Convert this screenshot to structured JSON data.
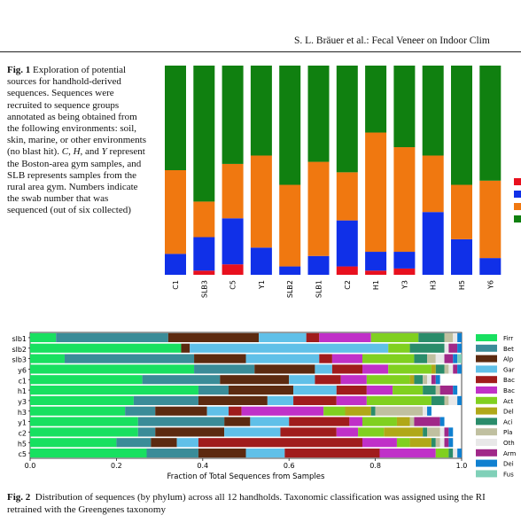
{
  "header": {
    "text": "S. L. Bräuer et al.: Fecal Veneer on Indoor Clim"
  },
  "figure1": {
    "label": "Fig. 1",
    "caption": "Exploration of potential sources for handhold-derived sequences. Sequences were recruited to sequence groups annotated as being obtained from the following environments: soil, skin, marine, or other environments (no blast hit). ",
    "c": "C",
    "sep1": ", ",
    "h": "H",
    "sep2": ", and ",
    "y": "Y",
    "caption_end": " represent the Boston-area gym samples, and SLB represents samples from the rural area gym. Numbers indicate the swab number that was sequenced (out of six collected)"
  },
  "figure2": {
    "label": "Fig. 2",
    "caption_line1": "Distribution of sequences (by phylum) across all 12 handholds. Taxonomic classification was assigned using the RI",
    "caption_line2": "retrained with the Greengenes taxonomy"
  },
  "colors": {
    "red": "#e8101e",
    "blue": "#1030e8",
    "orange": "#f07810",
    "green": "#108010",
    "Firmicutes": "#18e060",
    "Bacteroidetes": "#3a8c98",
    "Alphaproteobacteria": "#5c2a10",
    "Gammaproteobacteria": "#60c0e8",
    "Betaproteobacteria": "#a01c1c",
    "Bacteria_other": "#c030c8",
    "Actinobacteria": "#80d020",
    "Deltaproteobacteria": "#b0a818",
    "Acidobacteria": "#2a8c6a",
    "Planctomycetes": "#c0c0a0",
    "Other": "#e8e8e8",
    "Armatimonadetes": "#a02888",
    "Deinococcus": "#1080d0",
    "Fusobacteria": "#80d0b8"
  },
  "chart_data": [
    {
      "type": "bar",
      "stacked": true,
      "categories": [
        "C1",
        "SLB3",
        "C5",
        "Y1",
        "SLB2",
        "SLB1",
        "C2",
        "H1",
        "Y3",
        "H3",
        "H5",
        "Y6"
      ],
      "series": [
        {
          "color_key": "red",
          "values": [
            0.0,
            0.02,
            0.05,
            0.0,
            0.0,
            0.0,
            0.04,
            0.02,
            0.03,
            0.0,
            0.0,
            0.0
          ]
        },
        {
          "color_key": "blue",
          "values": [
            0.1,
            0.16,
            0.22,
            0.13,
            0.04,
            0.09,
            0.22,
            0.09,
            0.08,
            0.3,
            0.17,
            0.08
          ]
        },
        {
          "color_key": "orange",
          "values": [
            0.4,
            0.17,
            0.26,
            0.44,
            0.39,
            0.45,
            0.23,
            0.57,
            0.5,
            0.27,
            0.26,
            0.37
          ]
        },
        {
          "color_key": "green",
          "values": [
            0.5,
            0.65,
            0.47,
            0.43,
            0.57,
            0.46,
            0.51,
            0.32,
            0.39,
            0.43,
            0.57,
            0.55
          ]
        }
      ],
      "legend_position": "right",
      "ylim": [
        0,
        1
      ]
    },
    {
      "type": "bar",
      "orientation": "horizontal",
      "stacked": true,
      "categories": [
        "slb1",
        "slb2",
        "slb3",
        "y6",
        "c1",
        "h1",
        "y3",
        "h3",
        "y1",
        "c2",
        "h5",
        "c5"
      ],
      "xlabel": "Fraction of Total Sequences from Samples",
      "xlim": [
        0,
        1.0
      ],
      "xticks": [
        "0.0",
        "0.2",
        "0.4",
        "0.6",
        "0.8",
        "1.0"
      ],
      "legend_position": "right",
      "legend": [
        "Firr",
        "Bet",
        "Alp",
        "Gar",
        "Bac",
        "Bac",
        "Act",
        "Del",
        "Aci",
        "Pla",
        "Oth",
        "Arm",
        "Dei",
        "Fus"
      ],
      "series_keys": [
        "Firmicutes",
        "Bacteroidetes",
        "Alphaproteobacteria",
        "Gammaproteobacteria",
        "Betaproteobacteria",
        "Bacteria_other",
        "Actinobacteria",
        "Deltaproteobacteria",
        "Acidobacteria",
        "Planctomycetes",
        "Other",
        "Armatimonadetes",
        "Deinococcus",
        "Fusobacteria"
      ],
      "rows": [
        [
          0.06,
          0.26,
          0.21,
          0.11,
          0.03,
          0.12,
          0.11,
          0.0,
          0.06,
          0.02,
          0.01,
          0.0,
          0.01,
          0.0
        ],
        [
          0.35,
          0.0,
          0.02,
          0.46,
          0.0,
          0.0,
          0.05,
          0.0,
          0.08,
          0.0,
          0.01,
          0.02,
          0.01,
          0.0
        ],
        [
          0.08,
          0.3,
          0.12,
          0.17,
          0.03,
          0.07,
          0.12,
          0.0,
          0.03,
          0.02,
          0.02,
          0.02,
          0.01,
          0.01
        ],
        [
          0.38,
          0.14,
          0.14,
          0.04,
          0.07,
          0.06,
          0.1,
          0.01,
          0.02,
          0.01,
          0.01,
          0.01,
          0.01,
          0.0
        ],
        [
          0.26,
          0.18,
          0.16,
          0.06,
          0.06,
          0.06,
          0.1,
          0.01,
          0.02,
          0.01,
          0.01,
          0.01,
          0.01,
          0.0
        ],
        [
          0.39,
          0.07,
          0.15,
          0.1,
          0.07,
          0.06,
          0.07,
          0.0,
          0.03,
          0.01,
          0.0,
          0.03,
          0.01,
          0.0
        ],
        [
          0.24,
          0.15,
          0.16,
          0.06,
          0.1,
          0.07,
          0.15,
          0.0,
          0.03,
          0.01,
          0.02,
          0.0,
          0.01,
          0.0
        ],
        [
          0.22,
          0.07,
          0.12,
          0.05,
          0.03,
          0.19,
          0.05,
          0.06,
          0.01,
          0.11,
          0.01,
          0.0,
          0.01,
          0.0
        ],
        [
          0.25,
          0.2,
          0.06,
          0.09,
          0.14,
          0.03,
          0.08,
          0.03,
          0.0,
          0.01,
          0.0,
          0.06,
          0.01,
          0.0
        ],
        [
          0.25,
          0.04,
          0.16,
          0.13,
          0.13,
          0.05,
          0.06,
          0.09,
          0.01,
          0.03,
          0.01,
          0.01,
          0.01,
          0.0
        ],
        [
          0.2,
          0.08,
          0.06,
          0.05,
          0.38,
          0.08,
          0.03,
          0.05,
          0.01,
          0.01,
          0.01,
          0.01,
          0.01,
          0.0
        ],
        [
          0.27,
          0.12,
          0.11,
          0.09,
          0.22,
          0.13,
          0.03,
          0.0,
          0.01,
          0.0,
          0.01,
          0.0,
          0.01,
          0.0
        ]
      ]
    }
  ]
}
